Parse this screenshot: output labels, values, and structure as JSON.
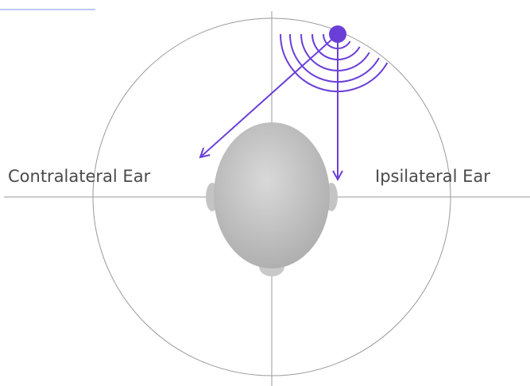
{
  "labels": {
    "left": "Contralateral Ear",
    "right": "Ipsilateral Ear"
  }
}
